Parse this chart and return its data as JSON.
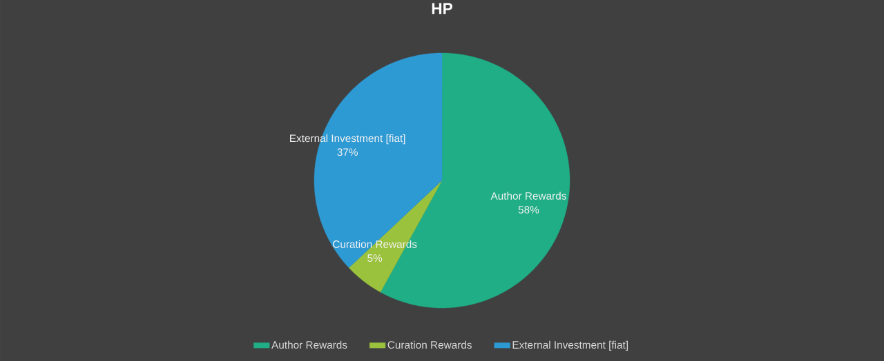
{
  "chart_data": {
    "type": "pie",
    "title": "HP",
    "categories": [
      "Author Rewards",
      "Curation Rewards",
      "External Investment [fiat]"
    ],
    "values": [
      58,
      5,
      37
    ],
    "value_labels": [
      "58%",
      "5%",
      "37%"
    ],
    "colors": [
      "#1fae86",
      "#9bc23d",
      "#2e9ad4"
    ],
    "legend": "bottom"
  }
}
